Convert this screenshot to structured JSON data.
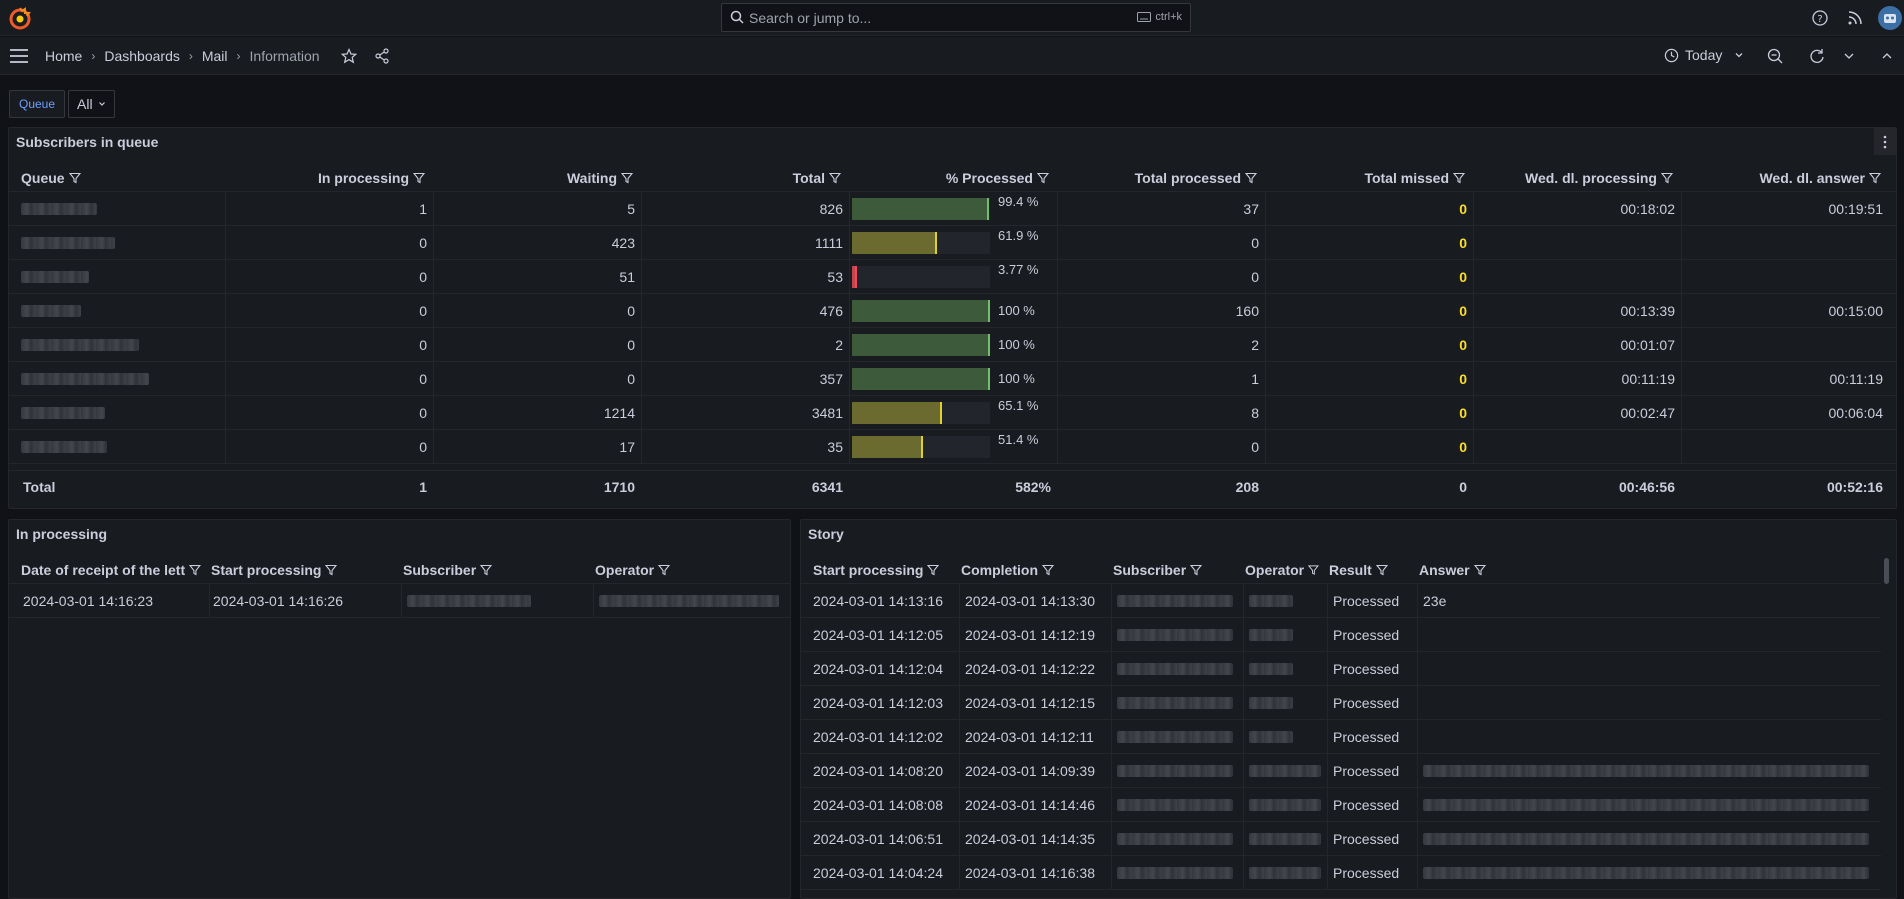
{
  "search": {
    "placeholder": "Search or jump to...",
    "shortcut": "ctrl+k"
  },
  "breadcrumbs": [
    "Home",
    "Dashboards",
    "Mail",
    "Information"
  ],
  "time_picker": {
    "label": "Today"
  },
  "variables": {
    "queue_label": "Queue",
    "queue_value": "All"
  },
  "subscribers": {
    "title": "Subscribers in queue",
    "columns": [
      "Queue",
      "In processing",
      "Waiting",
      "Total",
      "% Processed",
      "Total processed",
      "Total missed",
      "Wed. dl. processing",
      "Wed. dl. answer"
    ],
    "rows": [
      {
        "in_processing": "1",
        "waiting": "5",
        "total": "826",
        "pct_label": "99.4 %",
        "pct": 99.4,
        "total_processed": "37",
        "total_missed": "0",
        "dl_processing": "00:18:02",
        "dl_answer": "00:19:51"
      },
      {
        "in_processing": "0",
        "waiting": "423",
        "total": "1111",
        "pct_label": "61.9 %",
        "pct": 61.9,
        "total_processed": "0",
        "total_missed": "0",
        "dl_processing": "",
        "dl_answer": ""
      },
      {
        "in_processing": "0",
        "waiting": "51",
        "total": "53",
        "pct_label": "3.77 %",
        "pct": 3.77,
        "total_processed": "0",
        "total_missed": "0",
        "dl_processing": "",
        "dl_answer": ""
      },
      {
        "in_processing": "0",
        "waiting": "0",
        "total": "476",
        "pct_label": "100 %",
        "pct": 100,
        "total_processed": "160",
        "total_missed": "0",
        "dl_processing": "00:13:39",
        "dl_answer": "00:15:00"
      },
      {
        "in_processing": "0",
        "waiting": "0",
        "total": "2",
        "pct_label": "100 %",
        "pct": 100,
        "total_processed": "2",
        "total_missed": "0",
        "dl_processing": "00:01:07",
        "dl_answer": ""
      },
      {
        "in_processing": "0",
        "waiting": "0",
        "total": "357",
        "pct_label": "100 %",
        "pct": 100,
        "total_processed": "1",
        "total_missed": "0",
        "dl_processing": "00:11:19",
        "dl_answer": "00:11:19"
      },
      {
        "in_processing": "0",
        "waiting": "1214",
        "total": "3481",
        "pct_label": "65.1 %",
        "pct": 65.1,
        "total_processed": "8",
        "total_missed": "0",
        "dl_processing": "00:02:47",
        "dl_answer": "00:06:04"
      },
      {
        "in_processing": "0",
        "waiting": "17",
        "total": "35",
        "pct_label": "51.4 %",
        "pct": 51.4,
        "total_processed": "0",
        "total_missed": "0",
        "dl_processing": "",
        "dl_answer": ""
      }
    ],
    "footer": {
      "label": "Total",
      "in_processing": "1",
      "waiting": "1710",
      "total": "6341",
      "pct": "582%",
      "total_processed": "208",
      "total_missed": "0",
      "dl_processing": "00:46:56",
      "dl_answer": "00:52:16"
    }
  },
  "in_processing": {
    "title": "In processing",
    "columns": [
      "Date of receipt of the lett",
      "Start processing",
      "Subscriber",
      "Operator"
    ],
    "rows": [
      {
        "date_receipt": "2024-03-01 14:16:23",
        "start": "2024-03-01 14:16:26"
      }
    ]
  },
  "story": {
    "title": "Story",
    "columns": [
      "Start processing",
      "Completion",
      "Subscriber",
      "Operator",
      "Result",
      "Answer"
    ],
    "rows": [
      {
        "start": "2024-03-01 14:13:16",
        "completion": "2024-03-01 14:13:30",
        "result": "Processed",
        "answer": "23e"
      },
      {
        "start": "2024-03-01 14:12:05",
        "completion": "2024-03-01 14:12:19",
        "result": "Processed",
        "answer": ""
      },
      {
        "start": "2024-03-01 14:12:04",
        "completion": "2024-03-01 14:12:22",
        "result": "Processed",
        "answer": ""
      },
      {
        "start": "2024-03-01 14:12:03",
        "completion": "2024-03-01 14:12:15",
        "result": "Processed",
        "answer": ""
      },
      {
        "start": "2024-03-01 14:12:02",
        "completion": "2024-03-01 14:12:11",
        "result": "Processed",
        "answer": ""
      },
      {
        "start": "2024-03-01 14:08:20",
        "completion": "2024-03-01 14:09:39",
        "result": "Processed",
        "answer": ""
      },
      {
        "start": "2024-03-01 14:08:08",
        "completion": "2024-03-01 14:14:46",
        "result": "Processed",
        "answer": ""
      },
      {
        "start": "2024-03-01 14:06:51",
        "completion": "2024-03-01 14:14:35",
        "result": "Processed",
        "answer": ""
      },
      {
        "start": "2024-03-01 14:04:24",
        "completion": "2024-03-01 14:16:38",
        "result": "Processed",
        "answer": ""
      }
    ]
  },
  "colors": {
    "gauge_green": "#3d5a3b",
    "gauge_yellow": "#6b6a2f",
    "gauge_red": "#c4464c",
    "missed": "#fade2a"
  }
}
